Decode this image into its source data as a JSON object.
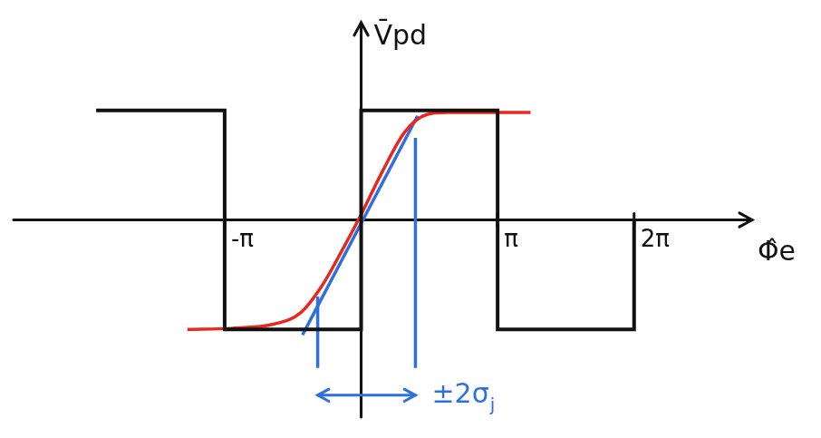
{
  "chart_data": {
    "type": "line",
    "x_label": "Φ̂e",
    "y_label": "V̄pd",
    "xlim": [
      -8,
      9
    ],
    "ylim": [
      -1.8,
      1.8
    ],
    "xticks": [
      {
        "value": -3.1416,
        "label": "-π"
      },
      {
        "value": 3.1416,
        "label": "π"
      },
      {
        "value": 6.2832,
        "label": "2π"
      }
    ],
    "tick_labels": "x",
    "grid": false,
    "series": [
      {
        "color": "#111111",
        "marker": "none",
        "line_style": "solid",
        "x": [
          -6.1,
          -3.1416,
          -3.1416,
          0,
          0,
          3.1416,
          3.1416,
          6.2832,
          6.2832
        ],
        "values": [
          1,
          1,
          -1,
          -1,
          1,
          1,
          -1,
          -1,
          0
        ]
      },
      {
        "color": "#e8281e",
        "marker": "none",
        "line_style": "curved",
        "x": [
          -4.0,
          -3.0,
          -2.0,
          -1.4,
          -0.9,
          -0.4,
          0,
          0.5,
          1.0,
          1.5,
          2.0,
          3.3,
          3.9
        ],
        "values": [
          -1.0,
          -0.99,
          -0.95,
          -0.85,
          -0.6,
          -0.25,
          0.05,
          0.45,
          0.8,
          0.96,
          0.98,
          0.98,
          0.98
        ]
      },
      {
        "color": "#2f6fe0",
        "marker": "none",
        "line_style": "solid",
        "x": [
          -1.35,
          1.3
        ],
        "values": [
          -1.05,
          0.95
        ]
      },
      {
        "color": "#2f6fe0",
        "marker": "none",
        "line_style": "solid",
        "x": [
          -1.0,
          -1.0
        ],
        "values": [
          -0.7,
          -1.35
        ]
      },
      {
        "color": "#2f6fe0",
        "marker": "none",
        "line_style": "solid",
        "x": [
          1.25,
          1.25
        ],
        "values": [
          0.75,
          -1.35
        ]
      }
    ],
    "annotation": {
      "text": "±2σ",
      "subscript": "j",
      "color": "#2f6fe0",
      "from": -1.0,
      "to": 1.25
    }
  }
}
